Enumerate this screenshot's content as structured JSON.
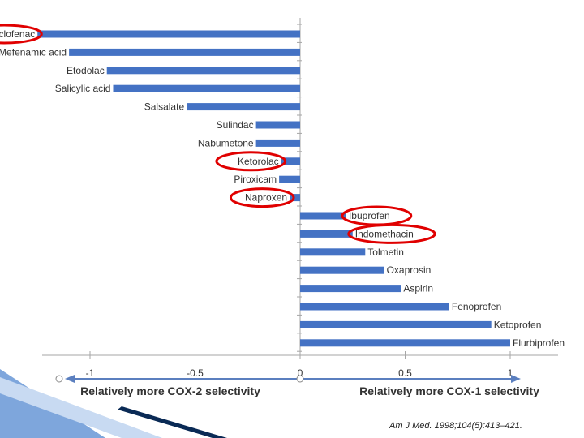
{
  "colors": {
    "bar": "#4472c4",
    "axis": "#a6a6a6",
    "arrow": "#5b7fbf",
    "highlight": "#e00000",
    "corner_dark": "#0a2a55",
    "corner_light": "#a9c3e8"
  },
  "chart_data": {
    "type": "bar",
    "orientation": "horizontal",
    "categories": [
      "Diclofenac",
      "Mefenamic acid",
      "Etodolac",
      "Salicylic acid",
      "Salsalate",
      "Sulindac",
      "Nabumetone",
      "Ketorolac",
      "Piroxicam",
      "Naproxen",
      "Ibuprofen",
      "Indomethacin",
      "Tolmetin",
      "Oxaprosin",
      "Aspirin",
      "Fenoprofen",
      "Ketoprofen",
      "Flurbiprofen"
    ],
    "values": [
      -1.25,
      -1.1,
      -0.92,
      -0.89,
      -0.54,
      -0.21,
      -0.21,
      -0.09,
      -0.1,
      -0.05,
      0.22,
      0.25,
      0.31,
      0.4,
      0.48,
      0.71,
      0.91,
      1.0
    ],
    "highlighted": [
      "Diclofenac",
      "Ketorolac",
      "Naproxen",
      "Ibuprofen",
      "Indomethacin"
    ],
    "xlim": [
      -1.5,
      1.5
    ],
    "xticks": [
      "-1.5",
      "-1",
      "-0.5",
      "0",
      "0.5",
      "1",
      "1.5"
    ],
    "xlabel_left": "Relatively more COX-2 selectivity",
    "xlabel_right": "Relatively more COX-1 selectivity"
  },
  "citation": "Am J Med. 1998;104(5):413–421."
}
